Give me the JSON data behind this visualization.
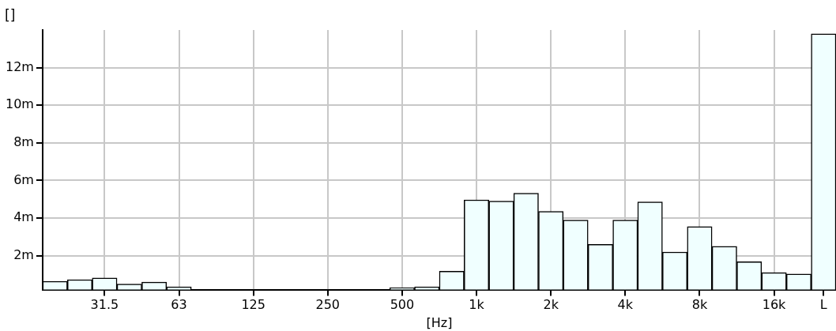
{
  "chart_data": {
    "type": "bar",
    "ylabel": "[]",
    "xlabel": "[Hz]",
    "categories": [
      null,
      null,
      "31.5",
      null,
      null,
      "63",
      null,
      null,
      "125",
      null,
      null,
      "250",
      null,
      null,
      "500",
      null,
      null,
      "1k",
      null,
      null,
      "2k",
      null,
      null,
      "4k",
      null,
      null,
      "8k",
      null,
      null,
      "16k",
      null,
      "L"
    ],
    "series": [
      {
        "color": "#f0ffff",
        "values": [
          0.64,
          0.73,
          0.82,
          0.5,
          0.6,
          0.35,
          null,
          null,
          null,
          null,
          null,
          null,
          null,
          null,
          0.3,
          0.35,
          1.18,
          4.97,
          4.9,
          5.32,
          4.36,
          3.9,
          2.6,
          3.9,
          4.86,
          2.2,
          3.55,
          2.5,
          1.68,
          1.1,
          1.03,
          13.8
        ]
      }
    ],
    "ylim": [
      0.2,
      14
    ],
    "yticks": [
      {
        "value": 2,
        "label": "2m"
      },
      {
        "value": 4,
        "label": "4m"
      },
      {
        "value": 6,
        "label": "6m"
      },
      {
        "value": 8,
        "label": "8m"
      },
      {
        "value": 10,
        "label": "10m"
      },
      {
        "value": 12,
        "label": "12m"
      }
    ],
    "grid": true,
    "legend": false
  }
}
